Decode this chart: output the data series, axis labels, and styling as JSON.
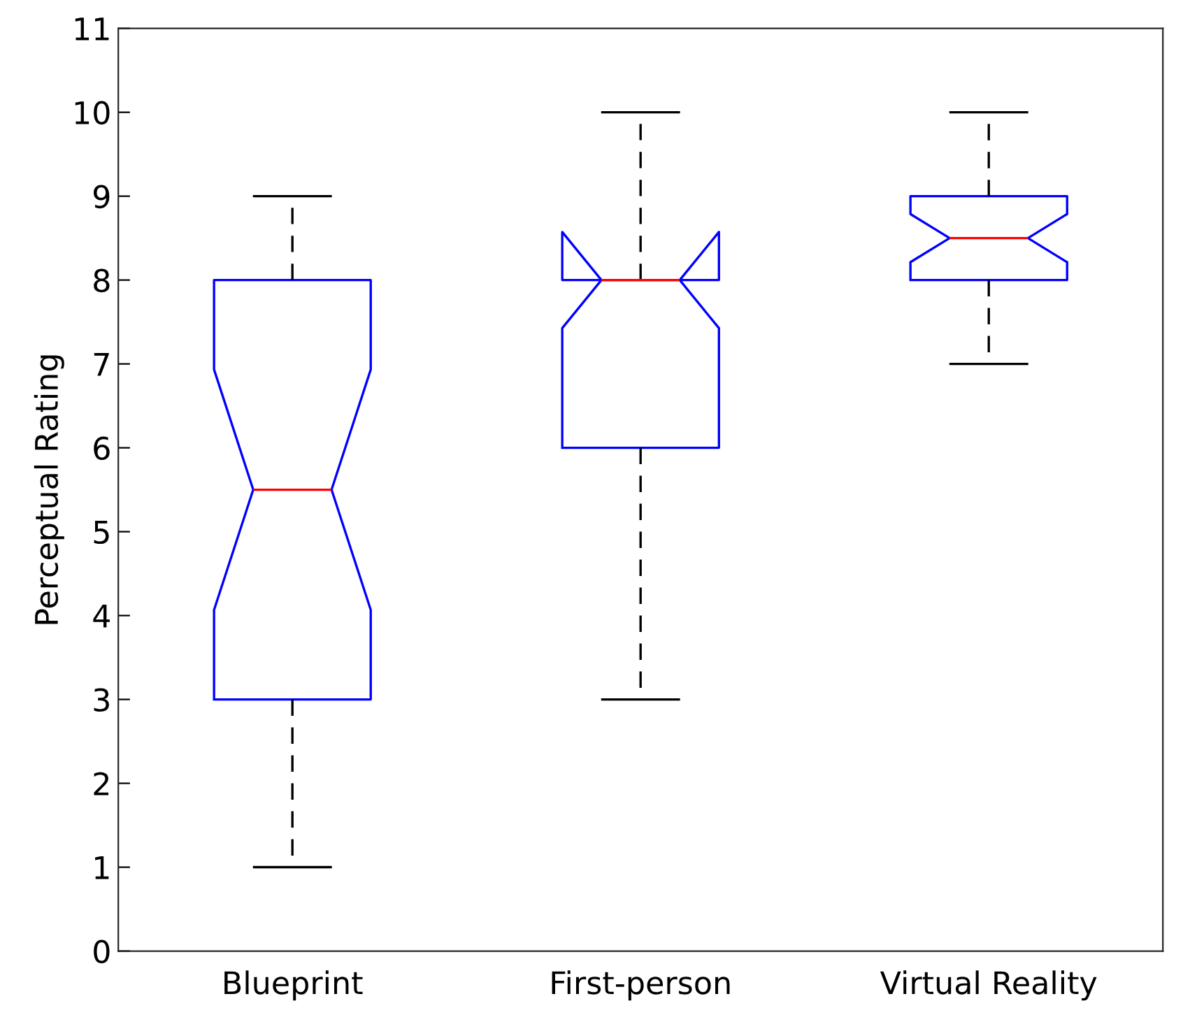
{
  "chart_data": {
    "type": "box",
    "ylabel": "Perceptual Rating",
    "categories": [
      "Blueprint",
      "First-person",
      "Virtual Reality"
    ],
    "boxes": [
      {
        "low": 1,
        "q1": 3,
        "median": 5.5,
        "q3": 8,
        "high": 9
      },
      {
        "low": 3,
        "q1": 6,
        "median": 8,
        "q3": 8,
        "high": 10
      },
      {
        "low": 7,
        "q1": 8,
        "median": 8.5,
        "q3": 9,
        "high": 10
      }
    ],
    "color": "#0000ff",
    "ylim": [
      0,
      11
    ],
    "yticks": [
      0,
      1,
      2,
      3,
      4,
      5,
      6,
      7,
      8,
      9,
      10,
      11
    ],
    "grid": false
  }
}
